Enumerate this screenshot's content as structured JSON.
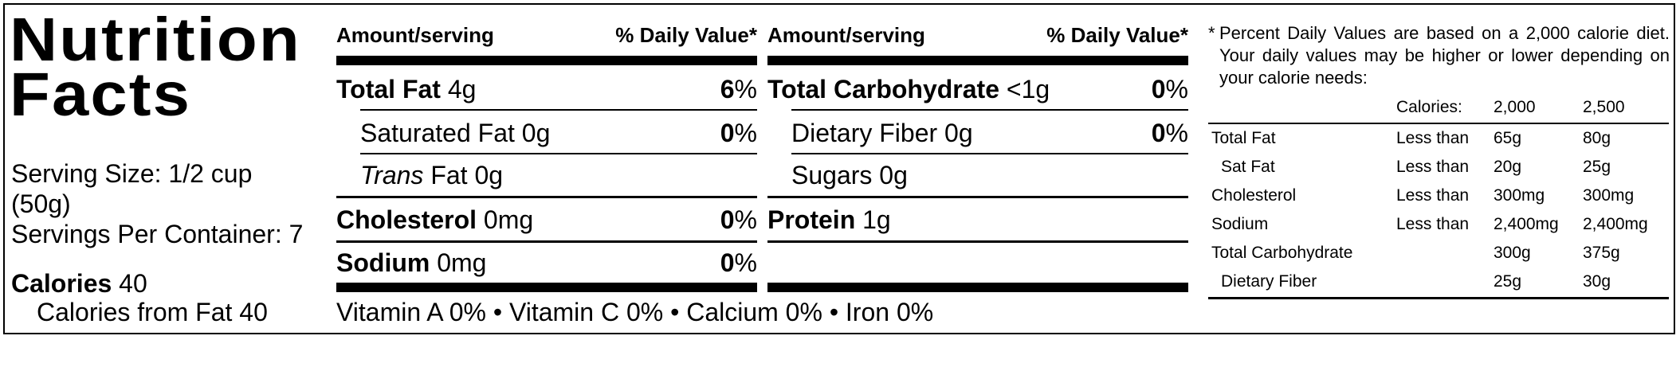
{
  "title": "Nutrition Facts",
  "serving": {
    "size_line1": "Serving Size: 1/2 cup",
    "size_line2": "(50g)",
    "per_container": "Servings Per Container: 7"
  },
  "calories": {
    "label": "Calories",
    "value": "40",
    "from_fat": "Calories from Fat 40"
  },
  "header": {
    "amount": "Amount/serving",
    "daily": "% Daily Value*"
  },
  "left_rows": [
    {
      "label": "Total Fat",
      "amount": "4g",
      "dv": "6",
      "pct": "%"
    },
    {
      "label": "Saturated Fat 0g",
      "dv": "0",
      "pct": "%"
    },
    {
      "label_italic": "Trans",
      "label_rest": " Fat 0g"
    },
    {
      "label": "Cholesterol",
      "amount": "0mg",
      "dv": "0",
      "pct": "%"
    },
    {
      "label": "Sodium",
      "amount": "0mg",
      "dv": "0",
      "pct": "%"
    }
  ],
  "right_rows": [
    {
      "label": "Total Carbohydrate",
      "amount": "<1g",
      "dv": "0",
      "pct": "%"
    },
    {
      "label": "Dietary Fiber 0g",
      "dv": "0",
      "pct": "%"
    },
    {
      "label": "Sugars 0g"
    },
    {
      "label": "Protein",
      "amount": "1g"
    }
  ],
  "vitamins": "Vitamin A 0% • Vitamin C 0% • Calcium 0% • Iron 0%",
  "footnote": {
    "star": "*",
    "text": "Percent Daily Values are based on a 2,000 calorie diet. Your daily values may be higher or lower depending on your calorie needs:",
    "calories_label": "Calories:",
    "cal_2000": "2,000",
    "cal_2500": "2,500",
    "rows": [
      {
        "nutrient": "Total Fat",
        "limit": "Less than",
        "v2000": "65g",
        "v2500": "80g"
      },
      {
        "nutrient": "Sat Fat",
        "limit": "Less than",
        "v2000": "20g",
        "v2500": "25g"
      },
      {
        "nutrient": "Cholesterol",
        "limit": "Less than",
        "v2000": "300mg",
        "v2500": "300mg"
      },
      {
        "nutrient": "Sodium",
        "limit": "Less than",
        "v2000": "2,400mg",
        "v2500": "2,400mg"
      },
      {
        "nutrient": "Total Carbohydrate",
        "limit": "",
        "v2000": "300g",
        "v2500": "375g"
      },
      {
        "nutrient": "Dietary Fiber",
        "limit": "",
        "v2000": "25g",
        "v2500": "30g"
      }
    ]
  }
}
